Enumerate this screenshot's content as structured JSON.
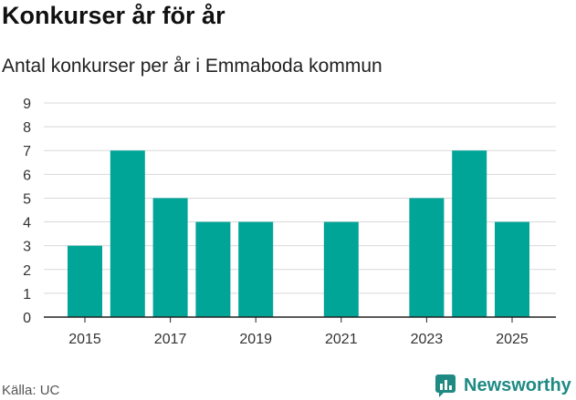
{
  "chart_data": {
    "type": "bar",
    "title": "Konkurser år för år",
    "subtitle": "Antal konkurser per år i Emmaboda kommun",
    "xlabel": "",
    "ylabel": "",
    "categories": [
      "2015",
      "2016",
      "2017",
      "2018",
      "2019",
      "2020",
      "2021",
      "2022",
      "2023",
      "2024",
      "2025"
    ],
    "values": [
      3,
      7,
      5,
      4,
      4,
      0,
      4,
      0,
      5,
      7,
      4
    ],
    "ylim": [
      0,
      9
    ],
    "yticks": [
      0,
      1,
      2,
      3,
      4,
      5,
      6,
      7,
      8,
      9
    ],
    "xtick_labels": [
      "2015",
      "2017",
      "2019",
      "2021",
      "2023",
      "2025"
    ],
    "grid": true,
    "bar_color": "#00a598"
  },
  "footer": {
    "source": "Källa: UC",
    "brand": "Newsworthy",
    "brand_color": "#1e8a83"
  }
}
